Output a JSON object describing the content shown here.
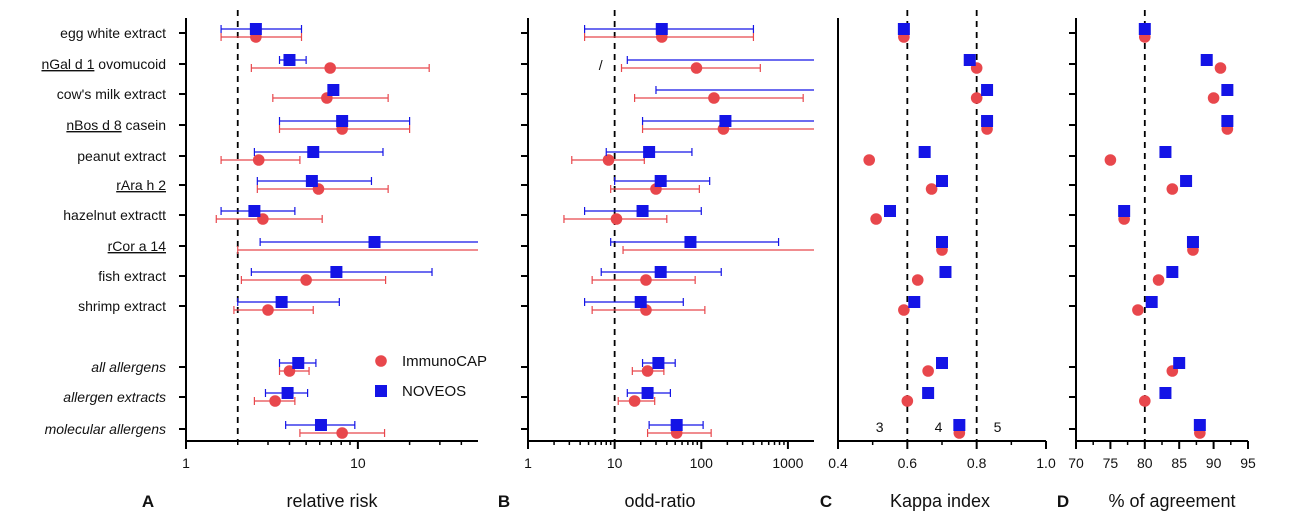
{
  "colors": {
    "immunocap": "#e8474c",
    "noveos": "#1414e6",
    "axis": "#000000"
  },
  "legend": [
    {
      "name": "ImmunoCAP",
      "marker": "circle"
    },
    {
      "name": "NOVEOS",
      "marker": "square"
    }
  ],
  "rows": [
    {
      "label": "egg white extract",
      "underline": "",
      "rest": "",
      "italic": false
    },
    {
      "label": "",
      "underline": "nGal d 1",
      "rest": " ovomucoid",
      "italic": false
    },
    {
      "label": "cow's milk extract",
      "underline": "",
      "rest": "",
      "italic": false
    },
    {
      "label": "",
      "underline": "nBos d 8",
      "rest": " casein",
      "italic": false
    },
    {
      "label": "peanut extract",
      "underline": "",
      "rest": "",
      "italic": false
    },
    {
      "label": "",
      "underline": "rAra h 2",
      "rest": "",
      "italic": false
    },
    {
      "label": "hazelnut extractt",
      "underline": "",
      "rest": "",
      "italic": false
    },
    {
      "label": "",
      "underline": "rCor a 14",
      "rest": "",
      "italic": false
    },
    {
      "label": "fish extract",
      "underline": "",
      "rest": "",
      "italic": false
    },
    {
      "label": "shrimp extract",
      "underline": "",
      "rest": "",
      "italic": false
    },
    {
      "label": "all allergens",
      "underline": "",
      "rest": "",
      "italic": true
    },
    {
      "label": "allergen extracts",
      "underline": "",
      "rest": "",
      "italic": true
    },
    {
      "label": "molecular allergens",
      "underline": "",
      "rest": "",
      "italic": true
    }
  ],
  "chart_data": [
    {
      "panel": "A",
      "type": "scatter",
      "xlabel": "relative risk",
      "xscale": "log",
      "xlim": [
        1,
        50
      ],
      "xticks": [
        1,
        10
      ],
      "reference_line": 2,
      "series": [
        {
          "name": "ImmunoCAP",
          "points": [
            {
              "value": 2.55,
              "low": 1.6,
              "high": 4.7
            },
            {
              "value": 6.9,
              "low": 2.4,
              "high": 26
            },
            {
              "value": 6.6,
              "low": 3.2,
              "high": 15
            },
            {
              "value": 8.1,
              "low": 3.5,
              "high": 20
            },
            {
              "value": 2.65,
              "low": 1.6,
              "high": 4.6
            },
            {
              "value": 5.9,
              "low": 2.6,
              "high": 15
            },
            {
              "value": 2.8,
              "low": 1.5,
              "high": 6.2
            },
            {
              "value": null,
              "low": 2.0,
              "high": 50
            },
            {
              "value": 5.0,
              "low": 2.1,
              "high": 14.5
            },
            {
              "value": 3.0,
              "low": 1.9,
              "high": 5.5
            },
            {
              "value": 4.0,
              "low": 3.5,
              "high": 5.2
            },
            {
              "value": 3.3,
              "low": 2.5,
              "high": 4.3
            },
            {
              "value": 8.1,
              "low": 4.6,
              "high": 14.3
            }
          ]
        },
        {
          "name": "NOVEOS",
          "points": [
            {
              "value": 2.55,
              "low": 1.6,
              "high": 4.7
            },
            {
              "value": 4.0,
              "low": 3.5,
              "high": 5.0
            },
            {
              "value": 7.2,
              "low": null,
              "high": null
            },
            {
              "value": 8.1,
              "low": 3.5,
              "high": 20
            },
            {
              "value": 5.5,
              "low": 2.5,
              "high": 14
            },
            {
              "value": 5.4,
              "low": 2.6,
              "high": 12
            },
            {
              "value": 2.5,
              "low": 1.6,
              "high": 4.3
            },
            {
              "value": 12.5,
              "low": 2.7,
              "high": 50
            },
            {
              "value": 7.5,
              "low": 2.4,
              "high": 27
            },
            {
              "value": 3.6,
              "low": 2.0,
              "high": 7.8
            },
            {
              "value": 4.5,
              "low": 3.5,
              "high": 5.7
            },
            {
              "value": 3.9,
              "low": 2.9,
              "high": 5.1
            },
            {
              "value": 6.1,
              "low": 3.8,
              "high": 9.6
            }
          ]
        }
      ]
    },
    {
      "panel": "B",
      "type": "scatter",
      "xlabel": "odd-ratio",
      "xscale": "log",
      "xlim": [
        1,
        2000
      ],
      "xticks": [
        1,
        10,
        100,
        1000
      ],
      "reference_line": 10,
      "annotation": "/",
      "series": [
        {
          "name": "ImmunoCAP",
          "points": [
            {
              "value": 35,
              "low": 4.5,
              "high": 400
            },
            {
              "value": 88,
              "low": 12,
              "high": 480
            },
            {
              "value": 140,
              "low": 17,
              "high": 1500
            },
            {
              "value": 180,
              "low": 21,
              "high": 2000
            },
            {
              "value": 8.5,
              "low": 3.2,
              "high": 22
            },
            {
              "value": 30,
              "low": 9,
              "high": 95
            },
            {
              "value": 10.5,
              "low": 2.6,
              "high": 40
            },
            {
              "value": null,
              "low": 12.5,
              "high": 2000
            },
            {
              "value": 23,
              "low": 5.5,
              "high": 85
            },
            {
              "value": 23,
              "low": 5.5,
              "high": 110
            },
            {
              "value": 24,
              "low": 16,
              "high": 37
            },
            {
              "value": 17,
              "low": 11,
              "high": 29
            },
            {
              "value": 52,
              "low": 24,
              "high": 130
            }
          ]
        },
        {
          "name": "NOVEOS",
          "points": [
            {
              "value": 35,
              "low": 4.5,
              "high": 400
            },
            {
              "value": null,
              "low": 14,
              "high": 2000
            },
            {
              "value": null,
              "low": 30,
              "high": 2000
            },
            {
              "value": 190,
              "low": 21,
              "high": 2000
            },
            {
              "value": 25,
              "low": 8,
              "high": 78
            },
            {
              "value": 34,
              "low": 10,
              "high": 125
            },
            {
              "value": 21,
              "low": 4.5,
              "high": 100
            },
            {
              "value": 75,
              "low": 9,
              "high": 780
            },
            {
              "value": 34,
              "low": 7,
              "high": 170
            },
            {
              "value": 20,
              "low": 4.5,
              "high": 62
            },
            {
              "value": 32,
              "low": 21,
              "high": 50
            },
            {
              "value": 24,
              "low": 14,
              "high": 44
            },
            {
              "value": 52,
              "low": 25,
              "high": 105
            }
          ]
        }
      ]
    },
    {
      "panel": "C",
      "type": "scatter",
      "xlabel": "Kappa index",
      "xscale": "linear",
      "xlim": [
        0.4,
        1.0
      ],
      "xticks": [
        0.4,
        0.6,
        0.8,
        1.0
      ],
      "tick_labels": [
        "0.4",
        "0.6",
        "0.8",
        "1.0"
      ],
      "reference_lines": [
        0.6,
        0.8
      ],
      "zone_labels": [
        {
          "text": "3",
          "x": 0.52
        },
        {
          "text": "4",
          "x": 0.69
        },
        {
          "text": "5",
          "x": 0.86
        }
      ],
      "series": [
        {
          "name": "ImmunoCAP",
          "values": [
            0.59,
            0.8,
            0.8,
            0.83,
            0.49,
            0.67,
            0.51,
            0.7,
            0.63,
            0.59,
            0.66,
            0.6,
            0.75
          ]
        },
        {
          "name": "NOVEOS",
          "values": [
            0.59,
            0.78,
            0.83,
            0.83,
            0.65,
            0.7,
            0.55,
            0.7,
            0.71,
            0.62,
            0.7,
            0.66,
            0.75
          ]
        }
      ]
    },
    {
      "panel": "D",
      "type": "scatter",
      "xlabel": "% of agreement",
      "xscale": "linear",
      "xlim": [
        70,
        95
      ],
      "xticks": [
        70,
        75,
        80,
        85,
        90,
        95
      ],
      "reference_line": 80,
      "series": [
        {
          "name": "ImmunoCAP",
          "values": [
            80,
            91,
            90,
            92,
            75,
            84,
            77,
            87,
            82,
            79,
            84,
            80,
            88
          ]
        },
        {
          "name": "NOVEOS",
          "values": [
            80,
            89,
            92,
            92,
            83,
            86,
            77,
            87,
            84,
            81,
            85,
            83,
            88
          ]
        }
      ]
    }
  ]
}
